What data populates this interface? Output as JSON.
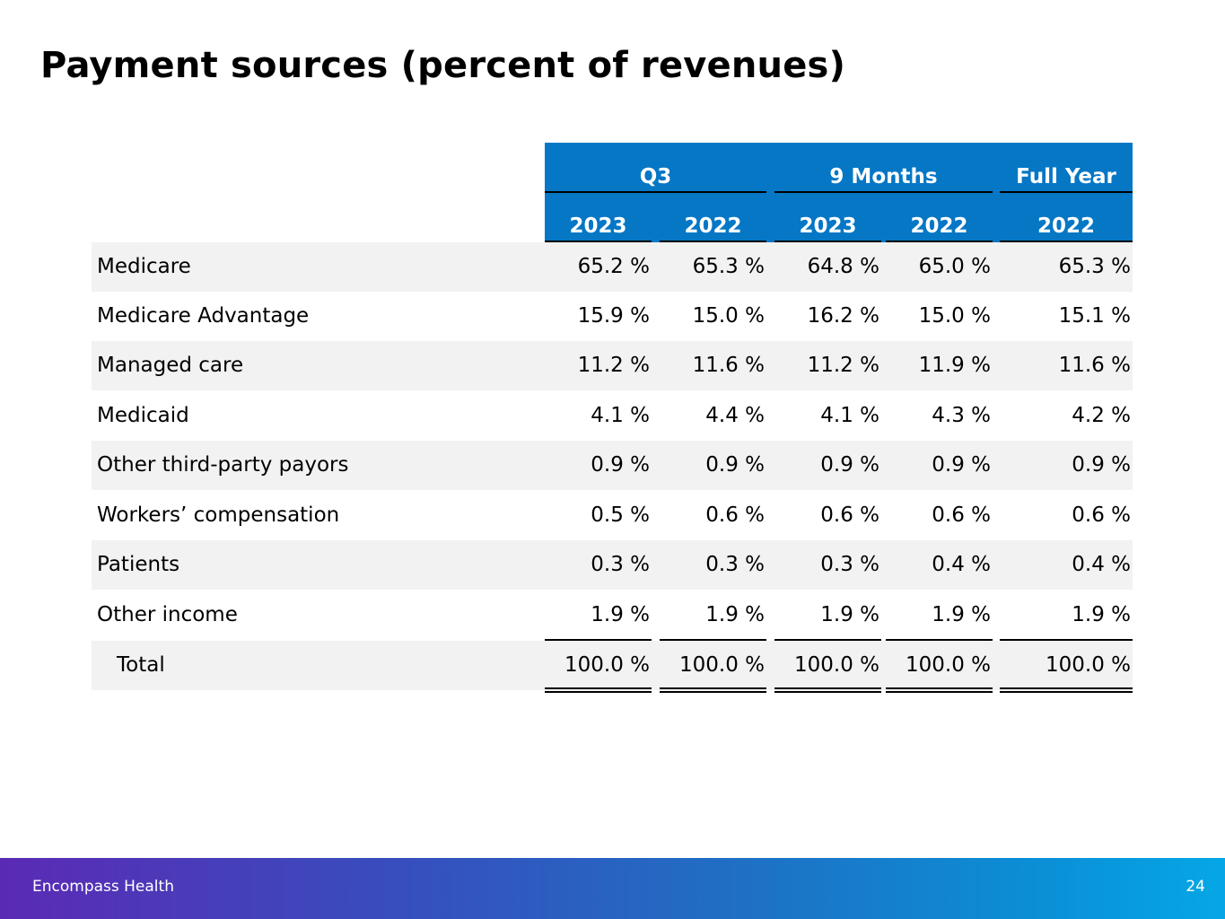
{
  "title": "Payment sources (percent of revenues)",
  "table": {
    "groups": [
      {
        "label": "Q3"
      },
      {
        "label": "9 Months"
      },
      {
        "label": "Full Year"
      }
    ],
    "years": [
      "2023",
      "2022",
      "2023",
      "2022",
      "2022"
    ],
    "rows": [
      {
        "label": "Medicare",
        "values": [
          "65.2 %",
          "65.3 %",
          "64.8 %",
          "65.0 %",
          "65.3 %"
        ]
      },
      {
        "label": "Medicare Advantage",
        "values": [
          "15.9 %",
          "15.0 %",
          "16.2 %",
          "15.0 %",
          "15.1 %"
        ]
      },
      {
        "label": "Managed care",
        "values": [
          "11.2 %",
          "11.6 %",
          "11.2 %",
          "11.9 %",
          "11.6 %"
        ]
      },
      {
        "label": "Medicaid",
        "values": [
          "4.1 %",
          "4.4 %",
          "4.1 %",
          "4.3 %",
          "4.2 %"
        ]
      },
      {
        "label": "Other third-party payors",
        "values": [
          "0.9 %",
          "0.9 %",
          "0.9 %",
          "0.9 %",
          "0.9 %"
        ]
      },
      {
        "label": "Workers’ compensation",
        "values": [
          "0.5 %",
          "0.6 %",
          "0.6 %",
          "0.6 %",
          "0.6 %"
        ]
      },
      {
        "label": "Patients",
        "values": [
          "0.3 %",
          "0.3 %",
          "0.3 %",
          "0.4 %",
          "0.4 %"
        ]
      },
      {
        "label": "Other income",
        "values": [
          "1.9 %",
          "1.9 %",
          "1.9 %",
          "1.9 %",
          "1.9 %"
        ]
      },
      {
        "label": "Total",
        "values": [
          "100.0 %",
          "100.0 %",
          "100.0 %",
          "100.0 %",
          "100.0 %"
        ]
      }
    ]
  },
  "footer": {
    "brand": "Encompass Health",
    "page_number": "24"
  },
  "colors": {
    "header_bg": "#0577c5",
    "row_shade": "#f2f2f2"
  }
}
